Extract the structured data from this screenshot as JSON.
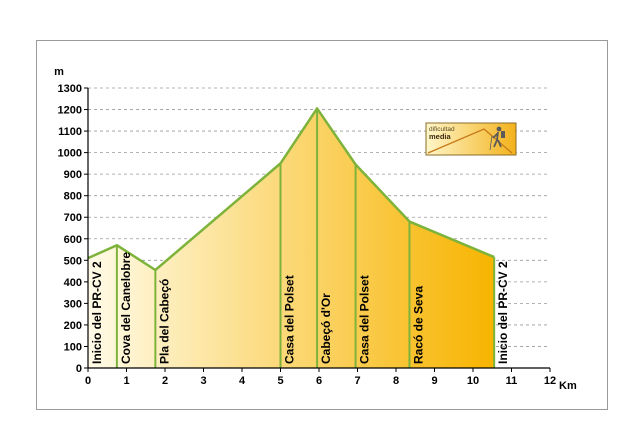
{
  "chart_data": {
    "type": "area",
    "ylabel": "m",
    "xlabel": "Km",
    "xlim": [
      0,
      12
    ],
    "ylim": [
      0,
      1300
    ],
    "xticks": [
      0,
      1,
      2,
      3,
      4,
      5,
      6,
      7,
      8,
      9,
      10,
      11,
      12
    ],
    "yticks": [
      0,
      100,
      200,
      300,
      400,
      500,
      600,
      700,
      800,
      900,
      1000,
      1100,
      1200,
      1300
    ],
    "grid": "horizontal dashed",
    "profile": [
      {
        "x": 0,
        "y": 510
      },
      {
        "x": 0.75,
        "y": 570
      },
      {
        "x": 1.75,
        "y": 455
      },
      {
        "x": 5.0,
        "y": 950
      },
      {
        "x": 5.95,
        "y": 1205
      },
      {
        "x": 6.95,
        "y": 945
      },
      {
        "x": 8.35,
        "y": 680
      },
      {
        "x": 10.55,
        "y": 515
      }
    ],
    "waypoints": [
      {
        "x": 0,
        "label": "Inicio del PR-CV 2"
      },
      {
        "x": 0.75,
        "label": "Cova del Canelobre"
      },
      {
        "x": 1.75,
        "label": "Pla del Cabeçó"
      },
      {
        "x": 5.0,
        "label": "Casa del Polset"
      },
      {
        "x": 5.95,
        "label": "Cabeçó d'Or"
      },
      {
        "x": 6.95,
        "label": "Casa del Polset"
      },
      {
        "x": 8.35,
        "label": "Racó de Seva"
      },
      {
        "x": 10.55,
        "label": "Inicio del PR-CV 2"
      }
    ],
    "colors": {
      "line": "#7db33a",
      "fill_start": "#fffbe8",
      "fill_end": "#f7b400",
      "grid": "#9a9a9a"
    }
  },
  "badge": {
    "line1": "dificultad",
    "line2": "media",
    "icon": "hiker-icon"
  }
}
